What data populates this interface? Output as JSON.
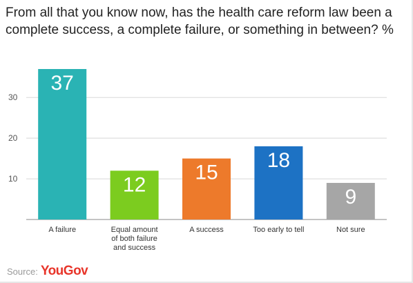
{
  "title": "From all that you know now, has the health care reform law been a complete success, a complete failure, or something in between? %",
  "source_label": "Source:",
  "source_brand": "YouGov",
  "colors": {
    "brand": "#e8352a",
    "grid": "#d8d8d8",
    "axis": "#555555",
    "text": "#333333"
  },
  "chart_data": {
    "type": "bar",
    "categories": [
      [
        "A failure"
      ],
      [
        "Equal amount",
        "of both failure",
        "and success"
      ],
      [
        "A success"
      ],
      [
        "Too early to tell"
      ],
      [
        "Not sure"
      ]
    ],
    "values": [
      37,
      12,
      15,
      18,
      9
    ],
    "bar_colors": [
      "#2ab3b4",
      "#7ccc1f",
      "#ed7a2b",
      "#1d72c4",
      "#a6a6a6"
    ],
    "y_ticks": [
      10,
      20,
      30
    ],
    "ylim": [
      0,
      37
    ],
    "grid": true,
    "data_labels": true
  }
}
